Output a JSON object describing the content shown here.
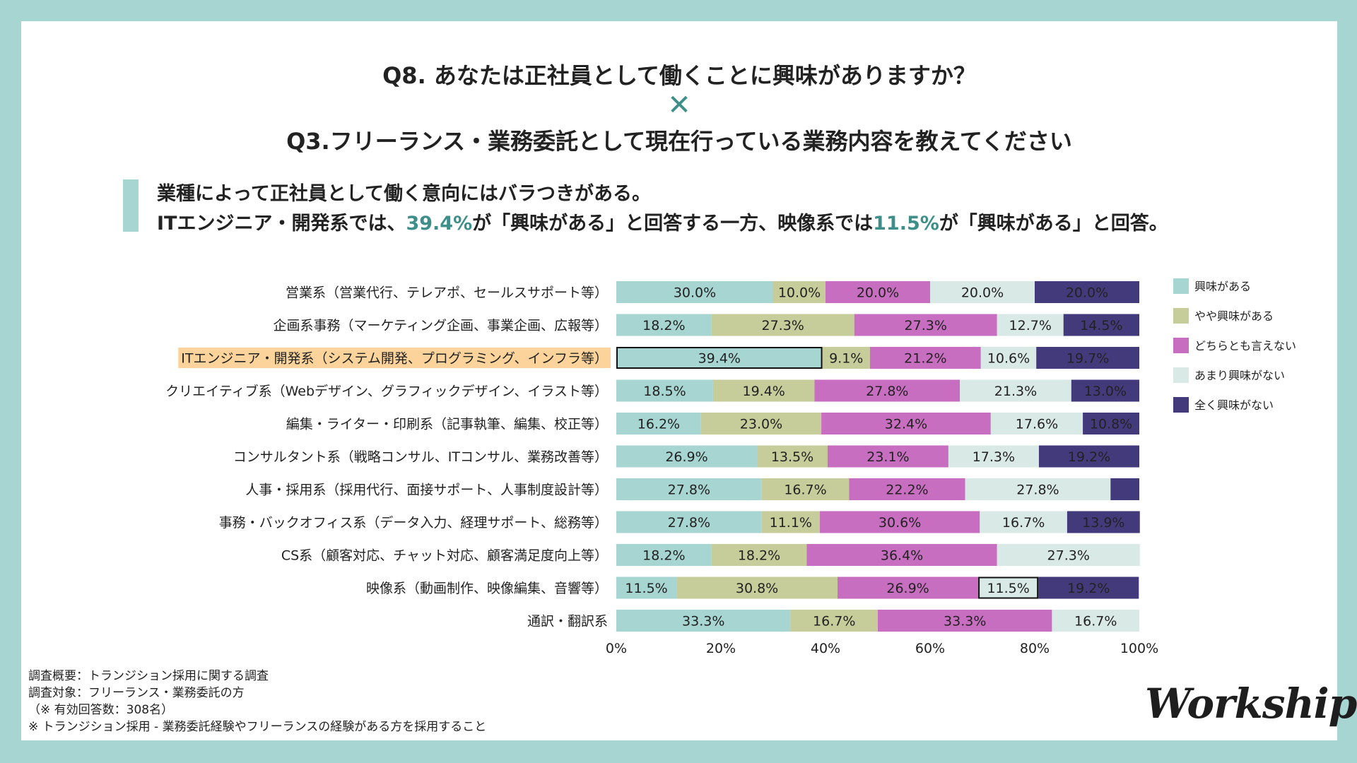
{
  "header": {
    "q8": "Q8. あなたは正社員として働くことに興味がありますか？",
    "times": "✕",
    "q3": "Q3.フリーランス・業務委託として現在行っている業務内容を教えてください"
  },
  "finding": {
    "line1": "業種によって正社員として働く意向にはバラつきがある。",
    "line2_a": "ITエンジニア・開発系では、",
    "line2_b": "39.4%",
    "line2_c": "が「興味がある」と回答する一方、映像系では",
    "line2_d": "11.5%",
    "line2_e": "が「興味がある」と回答。"
  },
  "chart_data": {
    "type": "bar",
    "orientation": "horizontal",
    "stacked": true,
    "categories": [
      "営業系（営業代行、テレアポ、セールスサポート等）",
      "企画系事務（マーケティング企画、事業企画、広報等）",
      "ITエンジニア・開発系（システム開発、プログラミング、インフラ等）",
      "クリエイティブ系（Webデザイン、グラフィックデザイン、イラスト等）",
      "編集・ライター・印刷系（記事執筆、編集、校正等）",
      "コンサルタント系（戦略コンサル、ITコンサル、業務改善等）",
      "人事・採用系（採用代行、面接サポート、人事制度設計等）",
      "事務・バックオフィス系（データ入力、経理サポート、総務等）",
      "CS系（顧客対応、チャット対応、顧客満足度向上等）",
      "映像系（動画制作、映像編集、音響等）",
      "通訳・翻訳系"
    ],
    "series": [
      {
        "name": "興味がある",
        "color": "#a7d5d1",
        "values": [
          30.0,
          18.2,
          39.4,
          18.5,
          16.2,
          26.9,
          27.8,
          27.8,
          18.2,
          11.5,
          33.3
        ]
      },
      {
        "name": "やや興味がある",
        "color": "#c6cd9b",
        "values": [
          10.0,
          27.3,
          9.1,
          19.4,
          23.0,
          13.5,
          16.7,
          11.1,
          18.2,
          30.8,
          16.7
        ]
      },
      {
        "name": "どちらとも言えない",
        "color": "#c86ec0",
        "values": [
          20.0,
          27.3,
          21.2,
          27.8,
          32.4,
          23.1,
          22.2,
          30.6,
          36.4,
          26.9,
          33.3
        ]
      },
      {
        "name": "あまり興味がない",
        "color": "#d9e9e6",
        "values": [
          20.0,
          12.7,
          10.6,
          21.3,
          17.6,
          17.3,
          27.8,
          16.7,
          27.3,
          11.5,
          16.7
        ]
      },
      {
        "name": "全く興味がない",
        "color": "#433a7c",
        "values": [
          20.0,
          14.5,
          19.7,
          13.0,
          10.8,
          19.2,
          5.5,
          13.9,
          0,
          19.2,
          0
        ]
      }
    ],
    "hidden_labels": [
      [
        6,
        4
      ]
    ],
    "highlight_category": 2,
    "outlined_segments": [
      [
        2,
        0
      ],
      [
        9,
        3
      ]
    ],
    "xticks": [
      "0%",
      "20%",
      "40%",
      "60%",
      "80%",
      "100%"
    ],
    "xlim": [
      0,
      100
    ],
    "legend_position": "right",
    "highlight_color": "#fcd49b"
  },
  "footnotes": {
    "line1": "調査概要：トランジション採用に関する調査",
    "line2": "調査対象：フリーランス・業務委託の方",
    "line3": "（※ 有効回答数：308名）",
    "line4": "※ トランジション採用 - 業務委託経験やフリーランスの経験がある方を採用すること"
  },
  "logo": "Workship"
}
